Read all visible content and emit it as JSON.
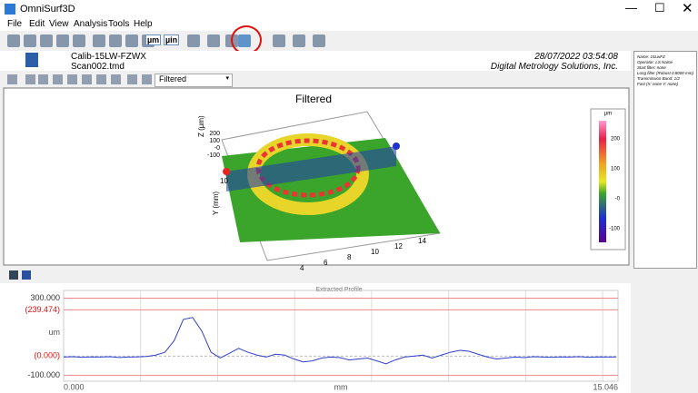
{
  "window": {
    "title": "OmniSurf3D",
    "menu": [
      "File",
      "Edit",
      "View",
      "Analysis",
      "Tools",
      "Help"
    ]
  },
  "toolbar": {
    "unit_buttons": [
      "µm",
      "µin"
    ]
  },
  "header": {
    "file": "Calib-15LW-FZWX",
    "scan": "Scan002.tmd",
    "date": "28/07/2022  03:54:08",
    "company": "Digital Metrology Solutions, Inc."
  },
  "side_panel": {
    "lines": [
      "Name: 15LwFZ",
      "Operator: LS Name",
      "Start filter: none",
      "Long filter (Robust 0.8000 mm)",
      "Transmission Band: 1/2",
      "Fast (X: none  Y: none)"
    ]
  },
  "view_selector": "Filtered",
  "surface_view": {
    "title": "Filtered",
    "z_axis_label": "Z (µm)",
    "y_axis_label": "Y (mm)",
    "z_ticks": [
      "200",
      "100",
      "-0",
      "-100"
    ],
    "x_ticks": [
      "14",
      "12",
      "10",
      "8",
      "6",
      "4"
    ],
    "y_tick": "10",
    "colorbar_unit": "µm",
    "colorbar_ticks": [
      "200",
      "100",
      "-0",
      "-100"
    ]
  },
  "chart_data": {
    "type": "line",
    "title": "Extracted Profile",
    "y_label": "um",
    "x_label": "mm",
    "x": [
      0,
      0.25,
      0.5,
      0.75,
      1,
      1.25,
      1.5,
      1.75,
      2,
      2.25,
      2.5,
      2.75,
      3,
      3.25,
      3.5,
      3.75,
      4,
      4.25,
      4.5,
      4.75,
      5,
      5.25,
      5.5,
      5.75,
      6,
      6.25,
      6.5,
      6.75,
      7,
      7.25,
      7.5,
      7.75,
      8,
      8.25,
      8.5,
      8.75,
      9,
      9.25,
      9.5,
      9.75,
      10,
      10.25,
      10.5,
      10.75,
      11,
      11.25,
      11.5,
      11.75,
      12,
      12.25,
      12.5,
      12.75,
      13,
      13.25,
      13.5,
      13.75,
      14,
      14.25,
      14.5,
      14.75,
      15
    ],
    "series": [
      {
        "color": "#2f3fd0",
        "values": [
          -5,
          -3,
          -6,
          -4,
          -5,
          -3,
          -7,
          -5,
          -4,
          -2,
          5,
          20,
          80,
          190,
          200,
          130,
          20,
          -10,
          15,
          40,
          20,
          5,
          -5,
          10,
          5,
          -15,
          -30,
          -25,
          -10,
          -5,
          -8,
          -20,
          -15,
          -10,
          -25,
          -40,
          -20,
          -5,
          0,
          5,
          -10,
          5,
          20,
          30,
          25,
          10,
          -5,
          -15,
          -10,
          -5,
          -8,
          -3,
          -5,
          -6,
          -4,
          -5,
          -3,
          -6,
          -4,
          -5,
          -4
        ]
      }
    ],
    "xlim": [
      0,
      15.046
    ],
    "xticks": [
      {
        "value": 0,
        "label": "0.000"
      },
      {
        "value": 15.046,
        "label": "15.046"
      }
    ],
    "ylim": [
      -130,
      340
    ],
    "yticks": [
      {
        "value": 300,
        "label": "300.000"
      },
      {
        "value": 239.474,
        "label": "(239.474)"
      },
      {
        "value": 0,
        "label": "(0.000)"
      },
      {
        "value": -100,
        "label": "-100.000"
      }
    ]
  }
}
